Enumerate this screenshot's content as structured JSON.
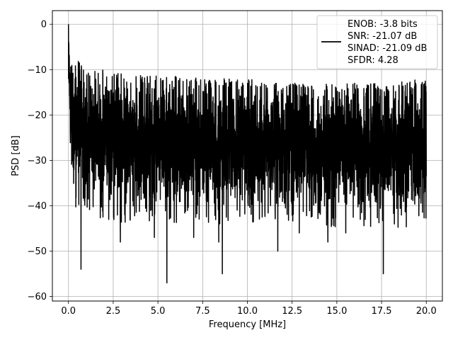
{
  "chart_data": {
    "type": "line",
    "title": "",
    "xlabel": "Frequency [MHz]",
    "ylabel": "PSD [dB]",
    "xlim": [
      -0.9,
      20.9
    ],
    "ylim": [
      -61,
      3
    ],
    "grid": true,
    "xticks": [
      0.0,
      2.5,
      5.0,
      7.5,
      10.0,
      12.5,
      15.0,
      17.5,
      20.0
    ],
    "xtick_labels": [
      "0.0",
      "2.5",
      "5.0",
      "7.5",
      "10.0",
      "12.5",
      "15.0",
      "17.5",
      "20.0"
    ],
    "yticks": [
      0,
      -10,
      -20,
      -30,
      -40,
      -50,
      -60
    ],
    "ytick_labels": [
      "0",
      "−10",
      "−20",
      "−30",
      "−40",
      "−50",
      "−60"
    ],
    "legend": {
      "placement": "top-right",
      "entries": [
        "ENOB: -3.8 bits",
        "SNR: -21.07 dB",
        "SINAD: -21.09 dB",
        "SFDR: 4.28"
      ]
    },
    "series": [
      {
        "color": "#000000",
        "x_range": [
          0.0,
          20.0
        ],
        "peak": {
          "x": 0.0,
          "y": 0.0
        },
        "envelope_x": [
          0.0,
          0.1,
          0.3,
          0.6,
          1.0,
          2.0,
          3.0,
          5.0,
          7.5,
          10.0,
          12.5,
          15.0,
          17.5,
          20.0
        ],
        "envelope_upper": [
          0.0,
          -9,
          -8,
          -8,
          -10,
          -10,
          -11,
          -11,
          -12,
          -12,
          -13,
          -13,
          -13,
          -12
        ],
        "envelope_lower": [
          -5,
          -35,
          -36,
          -37,
          -38,
          -39,
          -40,
          -40,
          -40,
          -40,
          -40,
          -41,
          -41,
          -41
        ],
        "notable_minima": [
          {
            "x": 0.7,
            "y": -54
          },
          {
            "x": 2.25,
            "y": -43
          },
          {
            "x": 2.9,
            "y": -48
          },
          {
            "x": 4.8,
            "y": -47
          },
          {
            "x": 5.5,
            "y": -57
          },
          {
            "x": 7.0,
            "y": -47
          },
          {
            "x": 8.4,
            "y": -48
          },
          {
            "x": 8.6,
            "y": -55
          },
          {
            "x": 11.7,
            "y": -50
          },
          {
            "x": 12.9,
            "y": -46
          },
          {
            "x": 14.5,
            "y": -48
          },
          {
            "x": 15.5,
            "y": -46
          },
          {
            "x": 17.6,
            "y": -55
          }
        ]
      }
    ]
  }
}
